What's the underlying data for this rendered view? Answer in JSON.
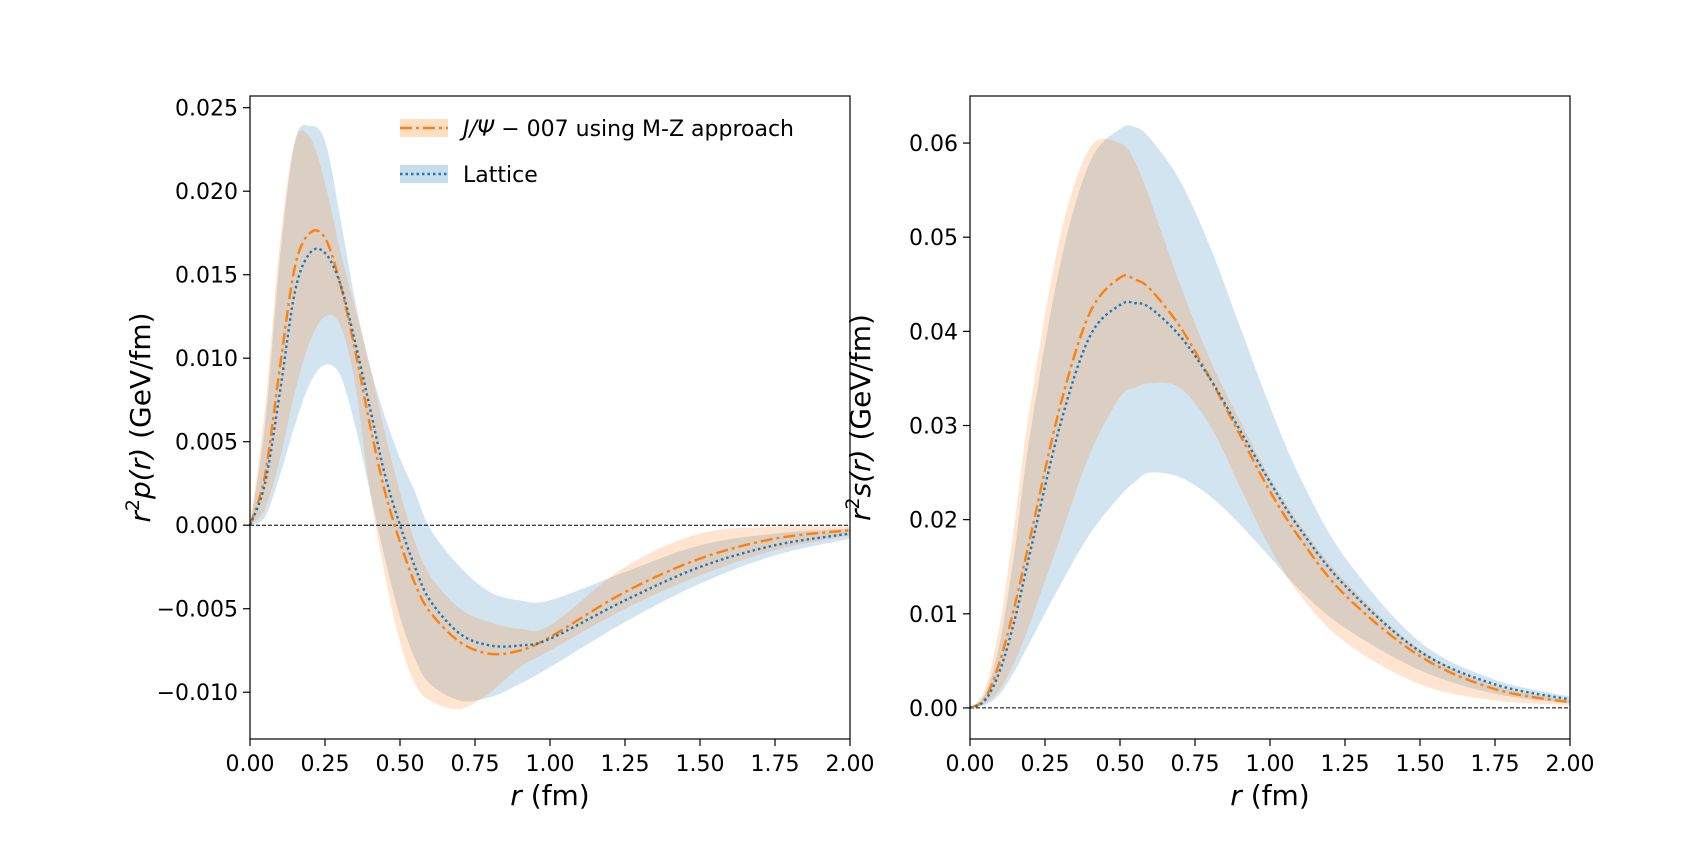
{
  "chart_data": [
    {
      "type": "line",
      "title": "",
      "xlabel_italic": "r",
      "xlabel_unit": " (fm)",
      "ylabel_prefix": "r",
      "ylabel_sup": "2",
      "ylabel_func": "p(r)",
      "ylabel_unit": " (GeV/fm)",
      "xlim": [
        0,
        2.0
      ],
      "ylim": [
        -0.0128,
        0.0257
      ],
      "xticks": [
        0,
        0.25,
        0.5,
        0.75,
        1.0,
        1.25,
        1.5,
        1.75,
        2.0
      ],
      "xtick_labels": [
        "0.00",
        "0.25",
        "0.50",
        "0.75",
        "1.00",
        "1.25",
        "1.50",
        "1.75",
        "2.00"
      ],
      "yticks": [
        -0.01,
        -0.005,
        0.0,
        0.005,
        0.01,
        0.015,
        0.02,
        0.025
      ],
      "ytick_labels": [
        "−0.010",
        "−0.005",
        "0.000",
        "0.005",
        "0.010",
        "0.015",
        "0.020",
        "0.025"
      ],
      "zero_line": true,
      "legend": {
        "position": "upper-center"
      },
      "series": [
        {
          "name": "J/Ψ − 007 using M-Z approach",
          "legend_italic": "J/Ψ",
          "legend_rest": " − 007 using M-Z approach",
          "color": "#ff7f0e",
          "dash": "dashdot",
          "x": [
            0.0,
            0.05,
            0.1,
            0.15,
            0.2,
            0.25,
            0.3,
            0.35,
            0.4,
            0.45,
            0.5,
            0.55,
            0.6,
            0.7,
            0.8,
            0.9,
            1.0,
            1.25,
            1.5,
            1.75,
            2.0
          ],
          "y": [
            0.0,
            0.003,
            0.0095,
            0.0155,
            0.0175,
            0.0172,
            0.0145,
            0.0105,
            0.006,
            0.002,
            -0.001,
            -0.0035,
            -0.0052,
            -0.007,
            -0.0077,
            -0.0075,
            -0.0067,
            -0.004,
            -0.002,
            -0.0008,
            -0.0003
          ],
          "upper": [
            0.0,
            0.007,
            0.017,
            0.023,
            0.0232,
            0.0205,
            0.0165,
            0.013,
            0.0095,
            0.0055,
            0.002,
            -0.001,
            -0.003,
            -0.005,
            -0.0058,
            -0.0062,
            -0.006,
            -0.0025,
            -0.0005,
            -0.0001,
            -0.0001
          ],
          "lower": [
            0.0,
            0.001,
            0.004,
            0.008,
            0.011,
            0.0125,
            0.012,
            0.0085,
            0.002,
            -0.003,
            -0.007,
            -0.0095,
            -0.0105,
            -0.011,
            -0.01,
            -0.0085,
            -0.0075,
            -0.005,
            -0.003,
            -0.0015,
            -0.0006
          ]
        },
        {
          "name": "Lattice",
          "color": "#1f77b4",
          "dash": "dotted",
          "x": [
            0.0,
            0.05,
            0.1,
            0.15,
            0.2,
            0.25,
            0.3,
            0.35,
            0.4,
            0.45,
            0.5,
            0.55,
            0.6,
            0.7,
            0.8,
            0.9,
            1.0,
            1.25,
            1.5,
            1.75,
            2.0
          ],
          "y": [
            0.0,
            0.0025,
            0.008,
            0.014,
            0.0163,
            0.0163,
            0.0145,
            0.011,
            0.007,
            0.003,
            0.0,
            -0.0025,
            -0.0045,
            -0.0065,
            -0.0072,
            -0.0072,
            -0.0068,
            -0.0045,
            -0.0025,
            -0.0012,
            -0.0005
          ],
          "upper": [
            0.0,
            0.006,
            0.016,
            0.023,
            0.0239,
            0.023,
            0.0185,
            0.0135,
            0.0095,
            0.0065,
            0.004,
            0.002,
            -0.0002,
            -0.0025,
            -0.004,
            -0.0045,
            -0.0045,
            -0.0028,
            -0.0012,
            -0.0005,
            -0.0002
          ],
          "lower": [
            0.0,
            0.0005,
            0.003,
            0.006,
            0.0085,
            0.0096,
            0.009,
            0.006,
            0.002,
            -0.002,
            -0.0055,
            -0.008,
            -0.0095,
            -0.0105,
            -0.0103,
            -0.0095,
            -0.0085,
            -0.0058,
            -0.0035,
            -0.0018,
            -0.0008
          ]
        }
      ]
    },
    {
      "type": "line",
      "title": "",
      "xlabel_italic": "r",
      "xlabel_unit": " (fm)",
      "ylabel_prefix": "r",
      "ylabel_sup": "2",
      "ylabel_func": "s(r)",
      "ylabel_unit": " (GeV/fm)",
      "xlim": [
        0,
        2.0
      ],
      "ylim": [
        -0.0033,
        0.065
      ],
      "xticks": [
        0,
        0.25,
        0.5,
        0.75,
        1.0,
        1.25,
        1.5,
        1.75,
        2.0
      ],
      "xtick_labels": [
        "0.00",
        "0.25",
        "0.50",
        "0.75",
        "1.00",
        "1.25",
        "1.50",
        "1.75",
        "2.00"
      ],
      "yticks": [
        0.0,
        0.01,
        0.02,
        0.03,
        0.04,
        0.05,
        0.06
      ],
      "ytick_labels": [
        "0.00",
        "0.01",
        "0.02",
        "0.03",
        "0.04",
        "0.05",
        "0.06"
      ],
      "zero_line": true,
      "series": [
        {
          "name": "J/Ψ − 007 using M-Z approach",
          "color": "#ff7f0e",
          "dash": "dashdot",
          "x": [
            0.0,
            0.05,
            0.1,
            0.15,
            0.2,
            0.3,
            0.4,
            0.5,
            0.55,
            0.6,
            0.7,
            0.8,
            0.9,
            1.0,
            1.1,
            1.25,
            1.5,
            1.75,
            2.0
          ],
          "y": [
            0.0,
            0.001,
            0.005,
            0.011,
            0.018,
            0.032,
            0.042,
            0.0457,
            0.0455,
            0.0445,
            0.0405,
            0.035,
            0.029,
            0.023,
            0.018,
            0.012,
            0.0055,
            0.002,
            0.0006
          ],
          "upper": [
            0.0,
            0.002,
            0.009,
            0.02,
            0.032,
            0.05,
            0.0595,
            0.06,
            0.058,
            0.054,
            0.045,
            0.037,
            0.0305,
            0.0245,
            0.0195,
            0.0135,
            0.0062,
            0.0024,
            0.0008
          ],
          "lower": [
            0.0,
            0.0005,
            0.002,
            0.005,
            0.009,
            0.018,
            0.027,
            0.033,
            0.034,
            0.0345,
            0.034,
            0.03,
            0.0235,
            0.017,
            0.012,
            0.007,
            0.0025,
            0.0008,
            0.0003
          ]
        },
        {
          "name": "Lattice",
          "color": "#1f77b4",
          "dash": "dotted",
          "x": [
            0.0,
            0.05,
            0.1,
            0.15,
            0.2,
            0.3,
            0.4,
            0.5,
            0.55,
            0.6,
            0.7,
            0.8,
            0.9,
            1.0,
            1.1,
            1.25,
            1.5,
            1.75,
            2.0
          ],
          "y": [
            0.0,
            0.0008,
            0.004,
            0.0095,
            0.0165,
            0.03,
            0.0395,
            0.0428,
            0.043,
            0.0425,
            0.0395,
            0.035,
            0.0295,
            0.024,
            0.019,
            0.013,
            0.006,
            0.0025,
            0.0009
          ],
          "upper": [
            0.0,
            0.0015,
            0.007,
            0.017,
            0.029,
            0.047,
            0.058,
            0.0615,
            0.0617,
            0.0605,
            0.056,
            0.049,
            0.0405,
            0.032,
            0.0245,
            0.016,
            0.007,
            0.003,
            0.0012
          ],
          "lower": [
            0.0,
            0.0003,
            0.0015,
            0.004,
            0.007,
            0.013,
            0.0185,
            0.0225,
            0.024,
            0.025,
            0.0245,
            0.0225,
            0.0195,
            0.016,
            0.0125,
            0.0085,
            0.004,
            0.0015,
            0.0005
          ]
        }
      ]
    }
  ]
}
